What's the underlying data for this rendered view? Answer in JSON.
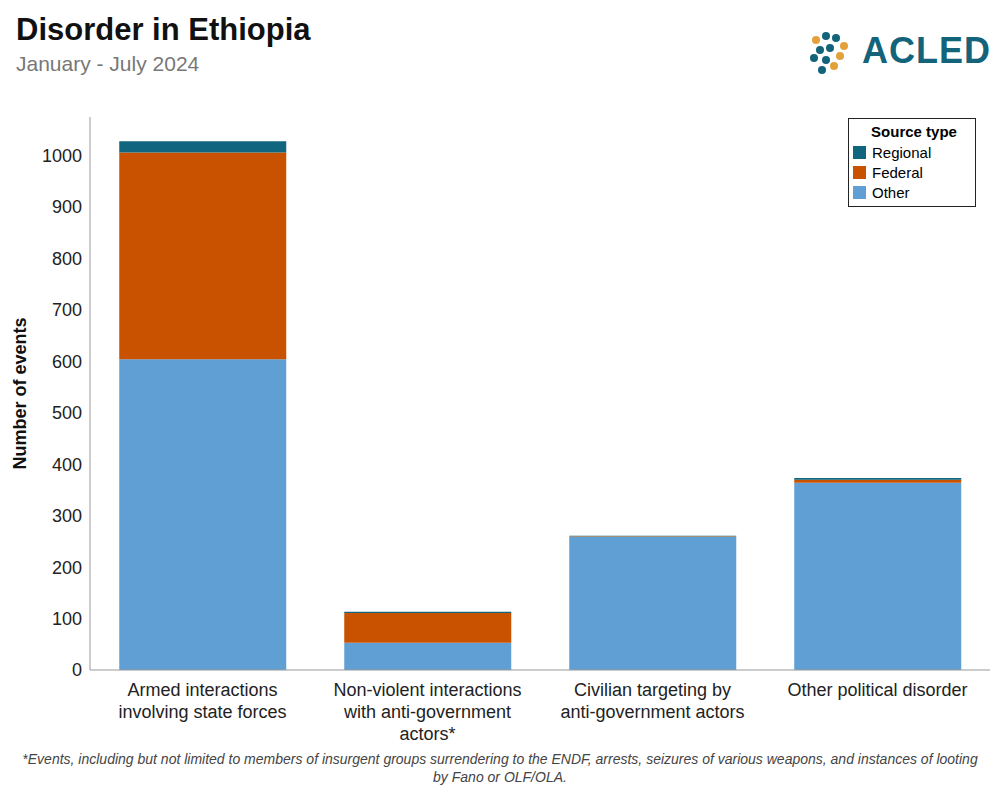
{
  "chart_data": {
    "type": "bar",
    "title": "Disorder in Ethiopia",
    "subtitle": "January - July 2024",
    "source_logo": "ACLED",
    "y_label": "Number of events",
    "categories": [
      "Armed interactions involving state forces",
      "Non-violent interactions with anti-government actors*",
      "Civilian targeting by anti-government actors",
      "Other political disorder"
    ],
    "series": [
      {
        "name": "Regional",
        "color": "#11657e",
        "values": [
          22,
          2,
          1,
          3
        ]
      },
      {
        "name": "Federal",
        "color": "#c85200",
        "values": [
          402,
          58,
          1,
          6
        ]
      },
      {
        "name": "Other",
        "color": "#5f9fd3",
        "values": [
          604,
          53,
          259,
          364
        ]
      }
    ],
    "stacked": true,
    "legend": "top-right",
    "legend_title": "Source type",
    "ylim": [
      0,
      1075
    ],
    "yticks": [
      0,
      100,
      200,
      300,
      400,
      500,
      600,
      700,
      800,
      900,
      1000
    ],
    "grid": false,
    "footnote": "*Events, including but not limited to members of insurgent groups surrendering to the ENDF, arrests, seizures of various weapons, and instances of looting by Fano or OLF/OLA."
  }
}
